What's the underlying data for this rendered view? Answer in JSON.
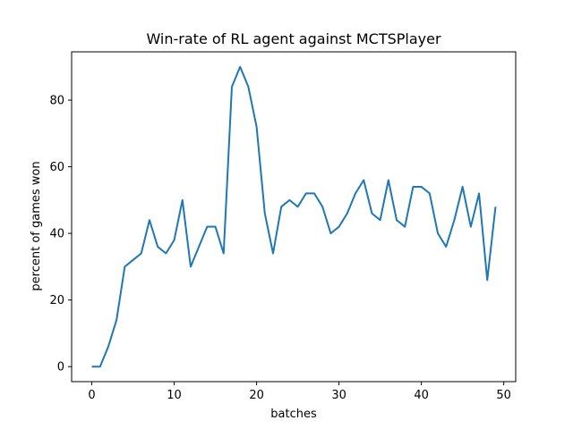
{
  "chart_data": {
    "type": "line",
    "title": "Win-rate of RL agent against MCTSPlayer",
    "xlabel": "batches",
    "ylabel": "percent of games won",
    "xlim": [
      -2.45,
      51.45
    ],
    "ylim": [
      -4.5,
      94.5
    ],
    "xticks": [
      0,
      10,
      20,
      30,
      40,
      50
    ],
    "yticks": [
      0,
      20,
      40,
      60,
      80
    ],
    "grid": false,
    "series": [
      {
        "color": "#1f77b4",
        "x": [
          0,
          1,
          2,
          3,
          4,
          5,
          6,
          7,
          8,
          9,
          10,
          11,
          12,
          13,
          14,
          15,
          16,
          17,
          18,
          19,
          20,
          21,
          22,
          23,
          24,
          25,
          26,
          27,
          28,
          29,
          30,
          31,
          32,
          33,
          34,
          35,
          36,
          37,
          38,
          39,
          40,
          41,
          42,
          43,
          44,
          45,
          46,
          47,
          48,
          49
        ],
        "y": [
          0,
          0,
          6,
          14,
          30,
          32,
          34,
          44,
          36,
          34,
          38,
          50,
          30,
          36,
          42,
          42,
          34,
          84,
          90,
          84,
          72,
          46,
          34,
          48,
          50,
          48,
          52,
          52,
          48,
          40,
          42,
          46,
          52,
          56,
          46,
          44,
          56,
          44,
          42,
          54,
          54,
          52,
          40,
          36,
          44,
          54,
          42,
          52,
          26,
          48
        ]
      }
    ]
  }
}
